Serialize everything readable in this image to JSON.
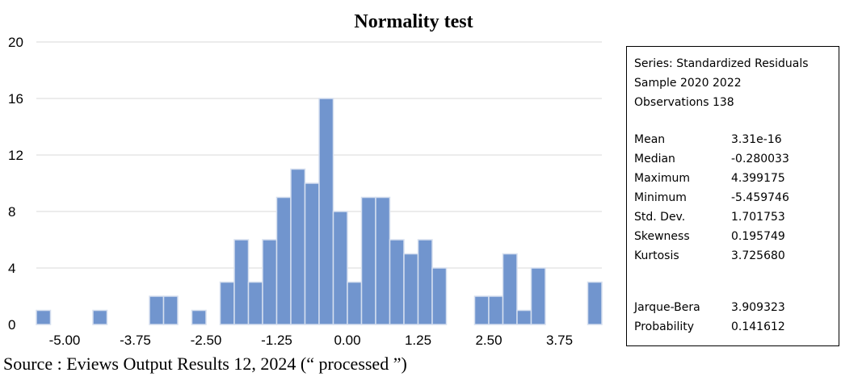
{
  "chart_data": {
    "type": "bar",
    "title": "Normality test",
    "xlabel": "",
    "ylabel": "",
    "ylim": [
      0,
      20
    ],
    "yticks": [
      0,
      4,
      8,
      12,
      16,
      20
    ],
    "xticks": [
      "-5.00",
      "-3.75",
      "-2.50",
      "-1.25",
      "0.00",
      "1.25",
      "2.50",
      "3.75"
    ],
    "bin_width": 0.25,
    "grid": true,
    "bins": [
      {
        "center": -5.375,
        "count": 1
      },
      {
        "center": -5.125,
        "count": 0
      },
      {
        "center": -4.875,
        "count": 0
      },
      {
        "center": -4.625,
        "count": 0
      },
      {
        "center": -4.375,
        "count": 1
      },
      {
        "center": -4.125,
        "count": 0
      },
      {
        "center": -3.875,
        "count": 0
      },
      {
        "center": -3.625,
        "count": 0
      },
      {
        "center": -3.375,
        "count": 2
      },
      {
        "center": -3.125,
        "count": 2
      },
      {
        "center": -2.875,
        "count": 0
      },
      {
        "center": -2.625,
        "count": 1
      },
      {
        "center": -2.375,
        "count": 0
      },
      {
        "center": -2.125,
        "count": 3
      },
      {
        "center": -1.875,
        "count": 6
      },
      {
        "center": -1.625,
        "count": 3
      },
      {
        "center": -1.375,
        "count": 6
      },
      {
        "center": -1.125,
        "count": 9
      },
      {
        "center": -0.875,
        "count": 11
      },
      {
        "center": -0.625,
        "count": 10
      },
      {
        "center": -0.375,
        "count": 16
      },
      {
        "center": -0.125,
        "count": 8
      },
      {
        "center": 0.125,
        "count": 3
      },
      {
        "center": 0.375,
        "count": 9
      },
      {
        "center": 0.625,
        "count": 9
      },
      {
        "center": 0.875,
        "count": 6
      },
      {
        "center": 1.125,
        "count": 5
      },
      {
        "center": 1.375,
        "count": 6
      },
      {
        "center": 1.625,
        "count": 4
      },
      {
        "center": 1.875,
        "count": 0
      },
      {
        "center": 2.125,
        "count": 0
      },
      {
        "center": 2.375,
        "count": 2
      },
      {
        "center": 2.625,
        "count": 2
      },
      {
        "center": 2.875,
        "count": 5
      },
      {
        "center": 3.125,
        "count": 1
      },
      {
        "center": 3.375,
        "count": 4
      },
      {
        "center": 3.625,
        "count": 0
      },
      {
        "center": 3.875,
        "count": 0
      },
      {
        "center": 4.125,
        "count": 0
      },
      {
        "center": 4.375,
        "count": 3
      }
    ],
    "colors": {
      "bar": "#7195CE",
      "bar_edge": "#D6DFEF",
      "grid": "#D9D9D9"
    }
  },
  "stats": {
    "header": [
      "Series: Standardized Residuals",
      "Sample 2020 2022",
      "Observations 138"
    ],
    "rows": [
      {
        "label": "Mean",
        "value": "3.31e-16"
      },
      {
        "label": "Median",
        "value": "-0.280033"
      },
      {
        "label": "Maximum",
        "value": "4.399175"
      },
      {
        "label": "Minimum",
        "value": "-5.459746"
      },
      {
        "label": "Std. Dev.",
        "value": "1.701753"
      },
      {
        "label": "Skewness",
        "value": "0.195749"
      },
      {
        "label": "Kurtosis",
        "value": "3.725680"
      }
    ],
    "test_rows": [
      {
        "label": "Jarque-Bera",
        "value": "3.909323"
      },
      {
        "label": "Probability",
        "value": "0.141612"
      }
    ]
  },
  "source_note": "Source : Eviews Output Results 12, 2024 (“ processed ”)"
}
